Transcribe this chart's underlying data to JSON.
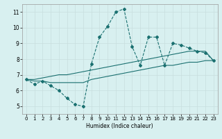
{
  "title": "",
  "xlabel": "Humidex (Indice chaleur)",
  "ylabel": "",
  "bg_color": "#d8f0f0",
  "grid_color": "#c8dede",
  "line_color": "#1a7070",
  "xlim": [
    -0.5,
    23.5
  ],
  "ylim": [
    4.5,
    11.5
  ],
  "xticks": [
    0,
    1,
    2,
    3,
    4,
    5,
    6,
    7,
    8,
    9,
    10,
    11,
    12,
    13,
    14,
    15,
    16,
    17,
    18,
    19,
    20,
    21,
    22,
    23
  ],
  "yticks": [
    5,
    6,
    7,
    8,
    9,
    10,
    11
  ],
  "line1_x": [
    0,
    1,
    2,
    3,
    4,
    5,
    6,
    7,
    8,
    9,
    10,
    11,
    12,
    13,
    14,
    15,
    16,
    17,
    18,
    19,
    20,
    21,
    22,
    23
  ],
  "line1_y": [
    6.7,
    6.4,
    6.6,
    6.3,
    6.0,
    5.5,
    5.1,
    5.0,
    7.7,
    9.4,
    10.1,
    11.0,
    11.2,
    8.8,
    7.6,
    9.4,
    9.4,
    7.6,
    9.0,
    8.9,
    8.7,
    8.5,
    8.4,
    7.9
  ],
  "line2_x": [
    0,
    1,
    2,
    3,
    4,
    5,
    6,
    7,
    8,
    9,
    10,
    11,
    12,
    13,
    14,
    15,
    16,
    17,
    18,
    19,
    20,
    21,
    22,
    23
  ],
  "line2_y": [
    6.7,
    6.7,
    6.8,
    6.9,
    7.0,
    7.0,
    7.1,
    7.2,
    7.3,
    7.4,
    7.5,
    7.6,
    7.7,
    7.8,
    7.9,
    8.0,
    8.1,
    8.2,
    8.3,
    8.4,
    8.5,
    8.5,
    8.5,
    7.9
  ],
  "line3_x": [
    0,
    1,
    2,
    3,
    4,
    5,
    6,
    7,
    8,
    9,
    10,
    11,
    12,
    13,
    14,
    15,
    16,
    17,
    18,
    19,
    20,
    21,
    22,
    23
  ],
  "line3_y": [
    6.7,
    6.6,
    6.6,
    6.5,
    6.5,
    6.5,
    6.5,
    6.5,
    6.7,
    6.8,
    6.9,
    7.0,
    7.1,
    7.2,
    7.3,
    7.4,
    7.5,
    7.6,
    7.6,
    7.7,
    7.8,
    7.8,
    7.9,
    7.9
  ],
  "xlabel_fontsize": 5.5,
  "tick_fontsize": 5,
  "linewidth": 0.8,
  "markersize": 2.0
}
